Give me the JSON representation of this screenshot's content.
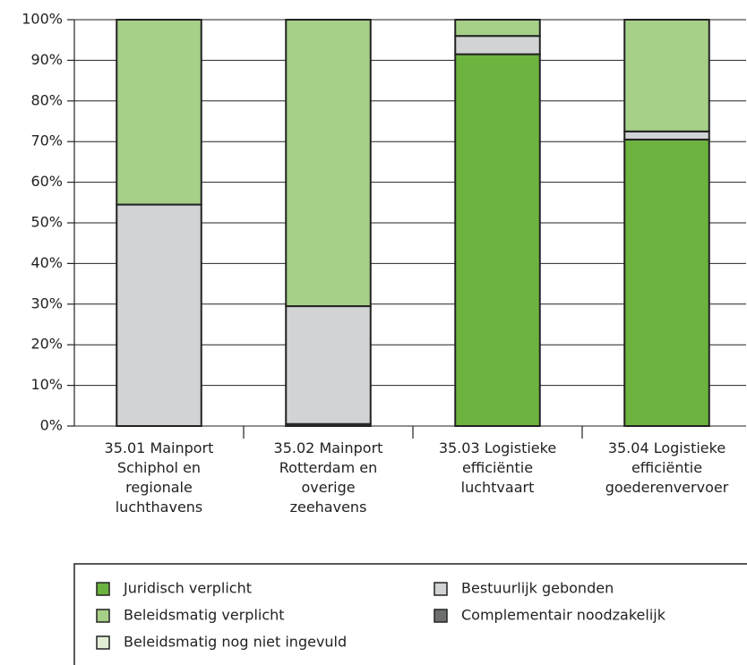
{
  "chart_data": {
    "type": "stacked_bar",
    "categories": [
      "35.01 Mainport Schiphol en regionale luchthavens",
      "35.02 Mainport Rotterdam en overige zeehavens",
      "35.03 Logistieke efficiëntie luchtvaart",
      "35.04 Logistieke efficiëntie goederenvervoer"
    ],
    "series": [
      {
        "name": "Juridisch verplicht",
        "color": "#6db33f",
        "values": [
          0,
          0,
          91.5,
          70.5
        ]
      },
      {
        "name": "Complementair noodzakelijk",
        "color": "#6d6e70",
        "values": [
          0,
          0.5,
          0,
          0
        ]
      },
      {
        "name": "Bestuurlijk gebonden",
        "color": "#d1d3d4",
        "values": [
          54.5,
          29,
          4.5,
          2
        ]
      },
      {
        "name": "Beleidsmatig verplicht",
        "color": "#a6cf88",
        "values": [
          45.5,
          70.5,
          4,
          27.5
        ]
      },
      {
        "name": "Beleidsmatig nog niet ingevuld",
        "color": "#e2efd6",
        "values": [
          0,
          0,
          0,
          0
        ]
      }
    ],
    "ylim": [
      0,
      100
    ],
    "yticks": [
      {
        "value": 0,
        "label": "0%"
      },
      {
        "value": 10,
        "label": "10%"
      },
      {
        "value": 20,
        "label": "20%"
      },
      {
        "value": 30,
        "label": "30%"
      },
      {
        "value": 40,
        "label": "40%"
      },
      {
        "value": 50,
        "label": "50%"
      },
      {
        "value": 60,
        "label": "60%"
      },
      {
        "value": 70,
        "label": "70%"
      },
      {
        "value": 80,
        "label": "80%"
      },
      {
        "value": 90,
        "label": "90%"
      },
      {
        "value": 100,
        "label": "100%"
      }
    ],
    "grid": true
  }
}
